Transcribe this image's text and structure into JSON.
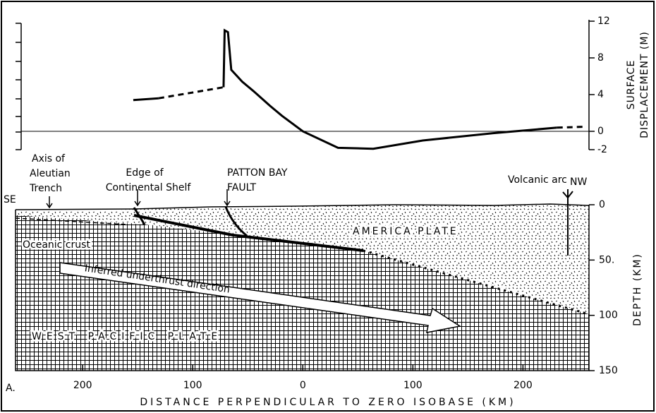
{
  "chart_data": [
    {
      "type": "line",
      "y_label": [
        "SURFACE",
        "DISPLACEMENT (M)"
      ],
      "xlim": [
        -261,
        260
      ],
      "ylim": [
        -2,
        12
      ],
      "yticks": [
        -2,
        0,
        4,
        8,
        12
      ],
      "color": "#000000",
      "series": [
        {
          "line_style": "solid",
          "x": [
            -154,
            -131
          ],
          "values": [
            3.4,
            3.6
          ]
        },
        {
          "line_style": "dashed",
          "x": [
            -131,
            -72
          ],
          "values": [
            3.6,
            4.8
          ]
        },
        {
          "line_style": "solid",
          "x": [
            -72,
            -71,
            -68,
            -65,
            -55,
            -45,
            -30,
            -19,
            0,
            32,
            64,
            109,
            173,
            231
          ],
          "values": [
            4.8,
            11,
            10.8,
            6.7,
            5.4,
            4.4,
            2.8,
            1.7,
            0,
            -1.8,
            -1.9,
            -1.0,
            -0.2,
            0.4
          ]
        },
        {
          "line_style": "dashed",
          "x": [
            231,
            256
          ],
          "values": [
            0.4,
            0.5
          ]
        }
      ]
    },
    {
      "type": "cross-section",
      "panel_label": "A.",
      "x_label": "DISTANCE PERPENDICULAR TO ZERO ISOBASE (KM)",
      "y_label": "DEPTH (KM)",
      "xlim": [
        -261,
        260
      ],
      "xticks": [
        {
          "value": -200,
          "label": "200"
        },
        {
          "value": -100,
          "label": "100"
        },
        0,
        100,
        200
      ],
      "ylim": [
        0,
        150
      ],
      "yticks": [
        0,
        {
          "value": 50,
          "label": "50."
        },
        100,
        150
      ],
      "annotations": {
        "trench": [
          "Axis of",
          "Aleutian",
          "Trench"
        ],
        "shelf": [
          "Edge of",
          "Continental Shelf"
        ],
        "fault": [
          "PATTON BAY",
          "FAULT"
        ],
        "arc": [
          "Volcanic arc"
        ],
        "nw": [
          "NW"
        ],
        "se": [
          "SE"
        ],
        "america": [
          "AMERICA PLATE"
        ],
        "crust": [
          "Oceanic crust"
        ],
        "arrow": [
          "Inferred underthrust direction"
        ],
        "pacific": [
          "WEST PACIFIC PLATE"
        ]
      }
    }
  ]
}
